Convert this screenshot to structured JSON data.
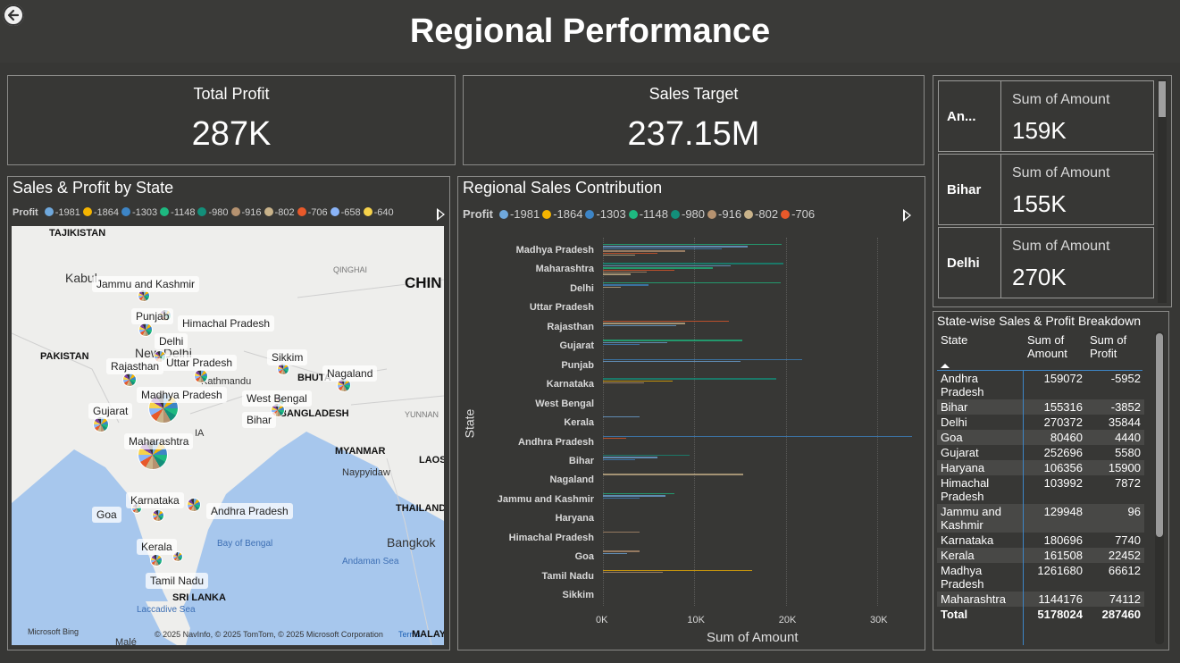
{
  "header": {
    "title": "Regional Performance"
  },
  "kpi_profit": {
    "label": "Total Profit",
    "value": "287K"
  },
  "kpi_target": {
    "label": "Sales Target",
    "value": "237.15M"
  },
  "map_visual": {
    "title": "Sales & Profit by State",
    "legend_title": "Profit",
    "legend": [
      {
        "label": "-1981",
        "color": "#6fa8dc"
      },
      {
        "label": "-1864",
        "color": "#f4b400"
      },
      {
        "label": "-1303",
        "color": "#3d85c6"
      },
      {
        "label": "-1148",
        "color": "#1eb980"
      },
      {
        "label": "-980",
        "color": "#138f7a"
      },
      {
        "label": "-916",
        "color": "#b59270"
      },
      {
        "label": "-802",
        "color": "#c9b38a"
      },
      {
        "label": "-706",
        "color": "#e8592a"
      },
      {
        "label": "-658",
        "color": "#8ab4f8"
      },
      {
        "label": "-640",
        "color": "#f6d24a"
      }
    ],
    "countries": [
      "TAJIKISTAN",
      "PAKISTAN",
      "CHIN",
      "MYANMAR",
      "LAOS",
      "THAILAND",
      "SRI LANKA",
      "BHUTA",
      "BANGLADESH"
    ],
    "cities": [
      "Kabul",
      "New Delhi",
      "Kathmandu",
      "Naypyidaw",
      "Bangkok",
      "Malé",
      "QINGHAI",
      "YUNNAN",
      "Andaman Sea",
      "Bay of Bengal",
      "Laccadive Sea",
      "IA"
    ],
    "states": [
      "Jammu and Kashmir",
      "Punjab",
      "Himachal Pradesh",
      "Delhi",
      "Rajasthan",
      "Uttar Pradesh",
      "Sikkim",
      "Nagaland",
      "Madhya Pradesh",
      "West Bengal",
      "Gujarat",
      "Bihar",
      "Maharashtra",
      "Karnataka",
      "Goa",
      "Andhra Pradesh",
      "Kerala",
      "Tamil Nadu"
    ],
    "bing": "Microsoft Bing",
    "copyright": "© 2025 NavInfo, © 2025 TomTom, © 2025 Microsoft Corporation",
    "terms": "Terms",
    "mala": "MALAYS"
  },
  "bar_visual": {
    "title": "Regional Sales Contribution",
    "legend_title": "Profit",
    "legend": [
      {
        "label": "-1981",
        "color": "#6fa8dc"
      },
      {
        "label": "-1864",
        "color": "#f4b400"
      },
      {
        "label": "-1303",
        "color": "#3d85c6"
      },
      {
        "label": "-1148",
        "color": "#1eb980"
      },
      {
        "label": "-980",
        "color": "#138f7a"
      },
      {
        "label": "-916",
        "color": "#b59270"
      },
      {
        "label": "-802",
        "color": "#c9b38a"
      },
      {
        "label": "-706",
        "color": "#e8592a"
      }
    ]
  },
  "chart_data": {
    "type": "bar",
    "orientation": "horizontal",
    "title": "Regional Sales Contribution",
    "xlabel": "Sum of Amount",
    "ylabel": "State",
    "xlim": [
      0,
      34000
    ],
    "x_ticks": [
      "0K",
      "10K",
      "20K",
      "30K"
    ],
    "categories": [
      "Madhya Pradesh",
      "Maharashtra",
      "Delhi",
      "Uttar Pradesh",
      "Rajasthan",
      "Gujarat",
      "Punjab",
      "Karnataka",
      "West Bengal",
      "Kerala",
      "Andhra Pradesh",
      "Bihar",
      "Nagaland",
      "Jammu and Kashmir",
      "Haryana",
      "Himachal Pradesh",
      "Goa",
      "Tamil Nadu",
      "Sikkim"
    ],
    "bars": [
      [
        {
          "v": 19500,
          "c": "#1eb980"
        },
        {
          "v": 15800,
          "c": "#6fa8dc"
        },
        {
          "v": 13000,
          "c": "#3d85c6"
        },
        {
          "v": 9000,
          "c": "#b59270"
        },
        {
          "v": 6000,
          "c": "#e8592a"
        },
        {
          "v": 3500,
          "c": "#c9b38a"
        }
      ],
      [
        {
          "v": 19700,
          "c": "#138f7a"
        },
        {
          "v": 14000,
          "c": "#6fa8dc"
        },
        {
          "v": 12000,
          "c": "#1eb980"
        },
        {
          "v": 7800,
          "c": "#e8592a"
        },
        {
          "v": 4800,
          "c": "#b59270"
        },
        {
          "v": 3000,
          "c": "#c9b38a"
        }
      ],
      [
        {
          "v": 19400,
          "c": "#1eb980"
        },
        {
          "v": 5000,
          "c": "#3d85c6"
        },
        {
          "v": 2000,
          "c": "#c9b38a"
        }
      ],
      [],
      [
        {
          "v": 13800,
          "c": "#e8592a"
        },
        {
          "v": 9000,
          "c": "#c9b38a"
        },
        {
          "v": 8000,
          "c": "#6fa8dc"
        }
      ],
      [
        {
          "v": 15200,
          "c": "#1eb980"
        },
        {
          "v": 7000,
          "c": "#6fa8dc"
        },
        {
          "v": 4000,
          "c": "#3d85c6"
        }
      ],
      [
        {
          "v": 21800,
          "c": "#3d85c6"
        },
        {
          "v": 15000,
          "c": "#6fa8dc"
        }
      ],
      [
        {
          "v": 19000,
          "c": "#138f7a"
        },
        {
          "v": 7600,
          "c": "#f4b400"
        },
        {
          "v": 4500,
          "c": "#b59270"
        }
      ],
      [],
      [
        {
          "v": 4000,
          "c": "#6fa8dc"
        }
      ],
      [
        {
          "v": 33800,
          "c": "#3d85c6"
        },
        {
          "v": 2500,
          "c": "#e8592a"
        }
      ],
      [
        {
          "v": 9500,
          "c": "#138f7a"
        },
        {
          "v": 6000,
          "c": "#6fa8dc"
        },
        {
          "v": 3500,
          "c": "#3d85c6"
        }
      ],
      [
        {
          "v": 15300,
          "c": "#c9b38a"
        }
      ],
      [
        {
          "v": 7800,
          "c": "#1eb980"
        },
        {
          "v": 6800,
          "c": "#6fa8dc"
        },
        {
          "v": 4000,
          "c": "#3d85c6"
        }
      ],
      [],
      [
        {
          "v": 4000,
          "c": "#b59270"
        }
      ],
      [
        {
          "v": 4000,
          "c": "#b59270"
        },
        {
          "v": 2600,
          "c": "#6fa8dc"
        }
      ],
      [
        {
          "v": 16300,
          "c": "#f4b400"
        },
        {
          "v": 6500,
          "c": "#b59270"
        }
      ],
      []
    ]
  },
  "multi_card": {
    "rows": [
      {
        "category": "An...",
        "label": "Sum of Amount",
        "value": "159K"
      },
      {
        "category": "Bihar",
        "label": "Sum of Amount",
        "value": "155K"
      },
      {
        "category": "Delhi",
        "label": "Sum of Amount",
        "value": "270K"
      }
    ]
  },
  "breakdown": {
    "title": "State-wise Sales & Profit Breakdown",
    "headers": [
      "State",
      "Sum of Amount",
      "Sum of Profit"
    ],
    "rows": [
      [
        "Andhra Pradesh",
        "159072",
        "-5952"
      ],
      [
        "Bihar",
        "155316",
        "-3852"
      ],
      [
        "Delhi",
        "270372",
        "35844"
      ],
      [
        "Goa",
        "80460",
        "4440"
      ],
      [
        "Gujarat",
        "252696",
        "5580"
      ],
      [
        "Haryana",
        "106356",
        "15900"
      ],
      [
        "Himachal Pradesh",
        "103992",
        "7872"
      ],
      [
        "Jammu and Kashmir",
        "129948",
        "96"
      ],
      [
        "Karnataka",
        "180696",
        "7740"
      ],
      [
        "Kerala",
        "161508",
        "22452"
      ],
      [
        "Madhya Pradesh",
        "1261680",
        "66612"
      ],
      [
        "Maharashtra",
        "1144176",
        "74112"
      ]
    ],
    "total": [
      "Total",
      "5178024",
      "287460"
    ]
  }
}
